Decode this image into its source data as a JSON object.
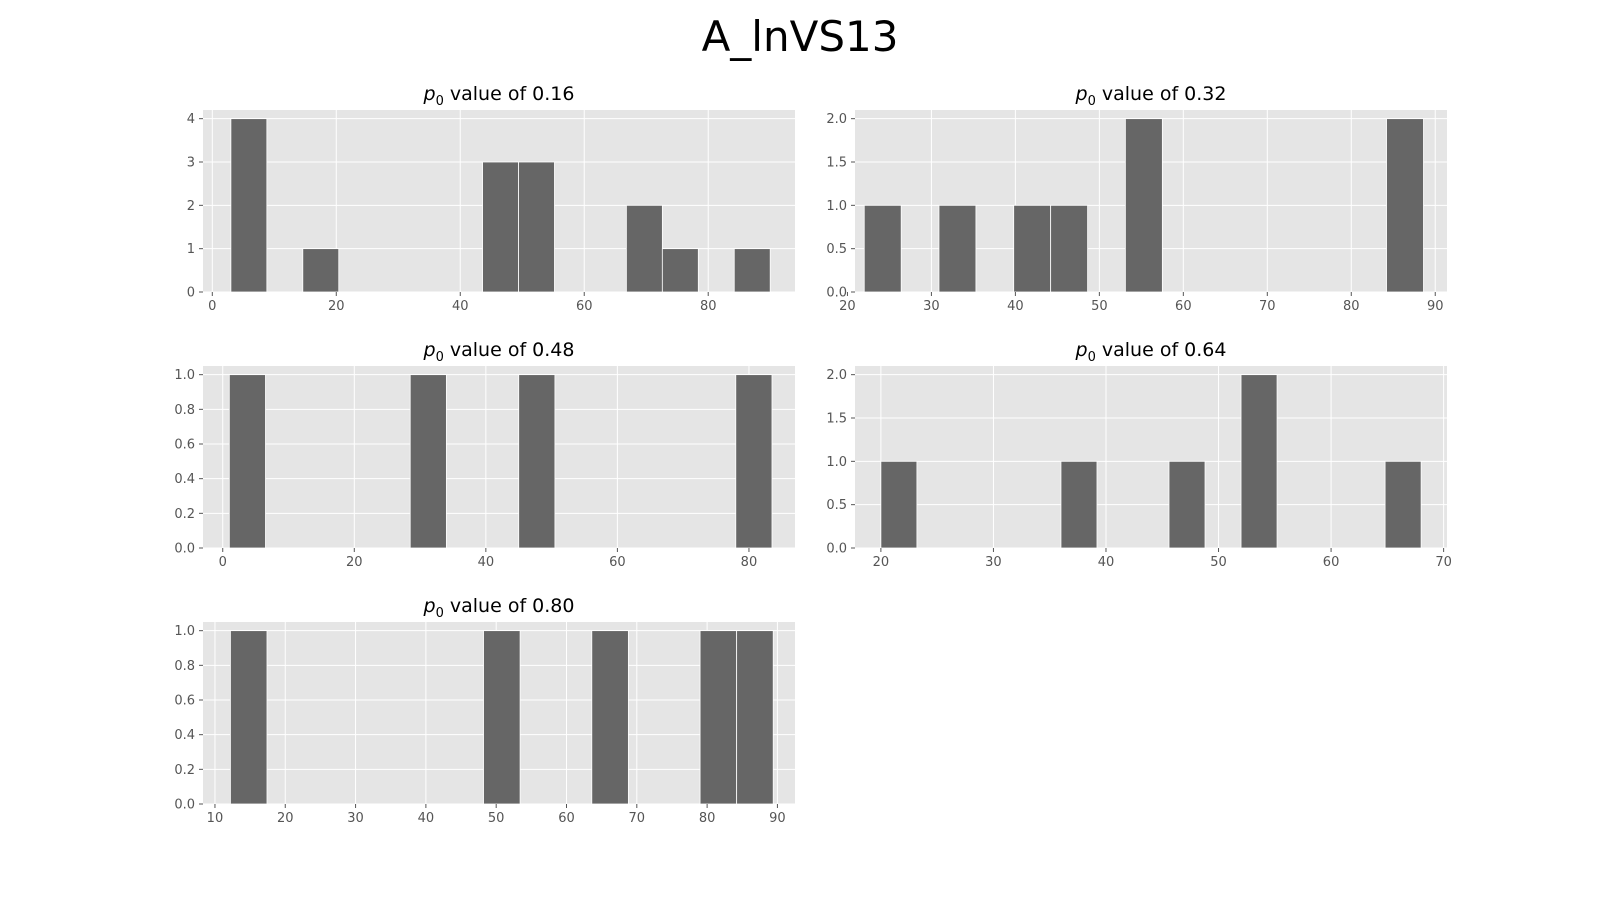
{
  "figure": {
    "title": "A_lnVS13"
  },
  "colors": {
    "panel_background": "#e5e5e5",
    "grid": "#ffffff",
    "bar_fill": "#666666",
    "bar_edge": "#ffffff",
    "tick_label": "#555555"
  },
  "chart_data": [
    {
      "type": "bar",
      "title": "p0 value of 0.16",
      "title_prefix": "p",
      "title_subscript": "0",
      "title_suffix": " value of 0.16",
      "xlabel": "",
      "ylabel": "",
      "grid": true,
      "xlim": [
        -1.5,
        94
      ],
      "ylim": [
        0,
        4.2
      ],
      "xticks": [
        0,
        20,
        40,
        60,
        80
      ],
      "yticks": [
        0,
        1,
        2,
        3,
        4
      ],
      "bins": [
        {
          "x0": 3.0,
          "x1": 8.8,
          "count": 4
        },
        {
          "x0": 14.6,
          "x1": 20.4,
          "count": 1
        },
        {
          "x0": 43.6,
          "x1": 49.4,
          "count": 3
        },
        {
          "x0": 49.4,
          "x1": 55.2,
          "count": 3
        },
        {
          "x0": 66.8,
          "x1": 72.6,
          "count": 2
        },
        {
          "x0": 72.6,
          "x1": 78.4,
          "count": 1
        },
        {
          "x0": 84.2,
          "x1": 90.0,
          "count": 1
        }
      ]
    },
    {
      "type": "bar",
      "title": "p0 value of 0.32",
      "title_prefix": "p",
      "title_subscript": "0",
      "title_suffix": " value of 0.32",
      "xlabel": "",
      "ylabel": "",
      "grid": true,
      "xlim": [
        20.9,
        91.4
      ],
      "ylim": [
        0,
        2.1
      ],
      "xticks": [
        20,
        30,
        40,
        50,
        60,
        70,
        80,
        90
      ],
      "yticks": [
        0.0,
        0.5,
        1.0,
        1.5,
        2.0
      ],
      "bins": [
        {
          "x0": 22.0,
          "x1": 26.4,
          "count": 1
        },
        {
          "x0": 30.9,
          "x1": 35.3,
          "count": 1
        },
        {
          "x0": 39.8,
          "x1": 44.2,
          "count": 1
        },
        {
          "x0": 44.2,
          "x1": 48.6,
          "count": 1
        },
        {
          "x0": 53.1,
          "x1": 57.5,
          "count": 2
        },
        {
          "x0": 84.2,
          "x1": 88.6,
          "count": 2
        }
      ]
    },
    {
      "type": "bar",
      "title": "p0 value of 0.48",
      "title_prefix": "p",
      "title_subscript": "0",
      "title_suffix": " value of 0.48",
      "xlabel": "",
      "ylabel": "",
      "grid": true,
      "xlim": [
        -3,
        87
      ],
      "ylim": [
        0,
        1.05
      ],
      "xticks": [
        0,
        20,
        40,
        60,
        80
      ],
      "yticks": [
        0.0,
        0.2,
        0.4,
        0.6,
        0.8,
        1.0
      ],
      "bins": [
        {
          "x0": 1.0,
          "x1": 6.5,
          "count": 1
        },
        {
          "x0": 28.5,
          "x1": 34.0,
          "count": 1
        },
        {
          "x0": 45.0,
          "x1": 50.5,
          "count": 1
        },
        {
          "x0": 78.0,
          "x1": 83.5,
          "count": 1
        }
      ]
    },
    {
      "type": "bar",
      "title": "p0 value of 0.64",
      "title_prefix": "p",
      "title_subscript": "0",
      "title_suffix": " value of 0.64",
      "xlabel": "",
      "ylabel": "",
      "grid": true,
      "xlim": [
        17.7,
        70.3
      ],
      "ylim": [
        0,
        2.1
      ],
      "xticks": [
        20,
        30,
        40,
        50,
        60,
        70
      ],
      "yticks": [
        0.0,
        0.5,
        1.0,
        1.5,
        2.0
      ],
      "bins": [
        {
          "x0": 20.0,
          "x1": 23.2,
          "count": 1
        },
        {
          "x0": 36.0,
          "x1": 39.2,
          "count": 1
        },
        {
          "x0": 45.6,
          "x1": 48.8,
          "count": 1
        },
        {
          "x0": 52.0,
          "x1": 55.2,
          "count": 2
        },
        {
          "x0": 64.8,
          "x1": 68.0,
          "count": 1
        }
      ]
    },
    {
      "type": "bar",
      "title": "p0 value of 0.80",
      "title_prefix": "p",
      "title_subscript": "0",
      "title_suffix": " value of 0.80",
      "xlabel": "",
      "ylabel": "",
      "grid": true,
      "xlim": [
        8.3,
        92.5
      ],
      "ylim": [
        0,
        1.05
      ],
      "xticks": [
        10,
        20,
        30,
        40,
        50,
        60,
        70,
        80,
        90
      ],
      "yticks": [
        0.0,
        0.2,
        0.4,
        0.6,
        0.8,
        1.0
      ],
      "bins": [
        {
          "x0": 12.2,
          "x1": 17.4,
          "count": 1
        },
        {
          "x0": 48.2,
          "x1": 53.4,
          "count": 1
        },
        {
          "x0": 63.6,
          "x1": 68.8,
          "count": 1
        },
        {
          "x0": 79.0,
          "x1": 84.2,
          "count": 1
        },
        {
          "x0": 84.2,
          "x1": 89.4,
          "count": 1
        }
      ]
    }
  ]
}
